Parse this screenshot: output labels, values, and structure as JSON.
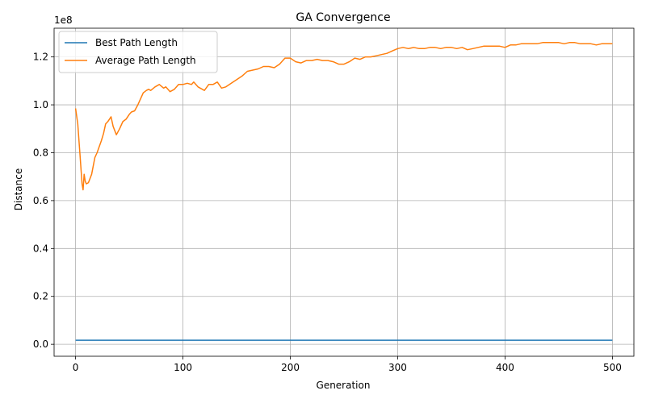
{
  "chart_data": {
    "type": "line",
    "title": "GA Convergence",
    "xlabel": "Generation",
    "ylabel": "Distance",
    "y_offset_text": "1e8",
    "xlim": [
      -20,
      520
    ],
    "ylim": [
      -5000000,
      132000000
    ],
    "xticks": [
      0,
      100,
      200,
      300,
      400,
      500
    ],
    "xtick_labels": [
      "0",
      "100",
      "200",
      "300",
      "400",
      "500"
    ],
    "yticks": [
      0,
      20000000,
      40000000,
      60000000,
      80000000,
      100000000,
      120000000
    ],
    "ytick_labels": [
      "0.0",
      "0.2",
      "0.4",
      "0.6",
      "0.8",
      "1.0",
      "1.2"
    ],
    "grid": true,
    "legend_position": "top-left",
    "series": [
      {
        "name": "Best Path Length",
        "color": "#1f77b4",
        "x": [
          0,
          500
        ],
        "y": [
          1700000,
          1700000
        ]
      },
      {
        "name": "Average Path Length",
        "color": "#ff7f0e",
        "x": [
          0,
          2,
          4,
          6,
          7,
          8,
          9,
          10,
          12,
          15,
          18,
          20,
          24,
          26,
          28,
          30,
          33,
          35,
          38,
          41,
          44,
          47,
          50,
          52,
          55,
          58,
          60,
          63,
          66,
          68,
          70,
          74,
          78,
          82,
          84,
          88,
          92,
          96,
          100,
          104,
          108,
          110,
          114,
          120,
          124,
          128,
          132,
          136,
          140,
          145,
          150,
          155,
          160,
          165,
          170,
          175,
          180,
          185,
          190,
          195,
          200,
          205,
          210,
          215,
          220,
          225,
          230,
          235,
          240,
          245,
          250,
          255,
          260,
          265,
          270,
          275,
          280,
          285,
          290,
          295,
          300,
          305,
          310,
          315,
          320,
          325,
          330,
          335,
          340,
          345,
          350,
          355,
          360,
          365,
          370,
          375,
          380,
          385,
          390,
          395,
          400,
          405,
          410,
          415,
          420,
          425,
          430,
          435,
          440,
          445,
          450,
          455,
          460,
          465,
          470,
          475,
          480,
          485,
          490,
          495,
          500
        ],
        "y": [
          98500000,
          92000000,
          80000000,
          67000000,
          64500000,
          71000000,
          68000000,
          67000000,
          67500000,
          71000000,
          78000000,
          80000000,
          85000000,
          88000000,
          92000000,
          93000000,
          95000000,
          91000000,
          87500000,
          90000000,
          93000000,
          94000000,
          96000000,
          97000000,
          97500000,
          100000000,
          102000000,
          105000000,
          106000000,
          106500000,
          106000000,
          107500000,
          108500000,
          107000000,
          107500000,
          105500000,
          106500000,
          108500000,
          108500000,
          109000000,
          108500000,
          109500000,
          107500000,
          106000000,
          108500000,
          108500000,
          109500000,
          107000000,
          107500000,
          109000000,
          110500000,
          112000000,
          114000000,
          114500000,
          115000000,
          116000000,
          116000000,
          115500000,
          117000000,
          119500000,
          119500000,
          118000000,
          117500000,
          118500000,
          118500000,
          119000000,
          118500000,
          118500000,
          118000000,
          117000000,
          117000000,
          118000000,
          119500000,
          119000000,
          120000000,
          120000000,
          120500000,
          121000000,
          121500000,
          122500000,
          123500000,
          124000000,
          123500000,
          124000000,
          123500000,
          123500000,
          124000000,
          124000000,
          123500000,
          124000000,
          124000000,
          123500000,
          124000000,
          123000000,
          123500000,
          124000000,
          124500000,
          124500000,
          124500000,
          124500000,
          124000000,
          125000000,
          125000000,
          125500000,
          125500000,
          125500000,
          125500000,
          126000000,
          126000000,
          126000000,
          126000000,
          125500000,
          126000000,
          126000000,
          125500000,
          125500000,
          125500000,
          125000000,
          125500000,
          125500000,
          125500000
        ]
      }
    ]
  }
}
